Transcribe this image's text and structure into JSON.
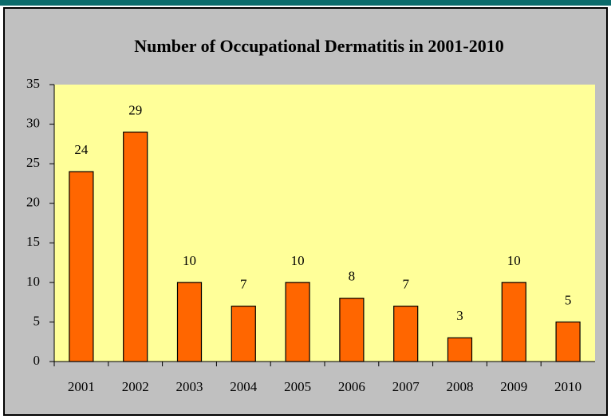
{
  "chart_data": {
    "type": "bar",
    "title": "Number of Occupational Dermatitis in 2001-2010",
    "categories": [
      "2001",
      "2002",
      "2003",
      "2004",
      "2005",
      "2006",
      "2007",
      "2008",
      "2009",
      "2010"
    ],
    "values": [
      24,
      29,
      10,
      7,
      10,
      8,
      7,
      3,
      10,
      5
    ],
    "color": "#ff6600",
    "ylim": [
      0,
      35
    ],
    "yticks": [
      0,
      5,
      10,
      15,
      20,
      25,
      30,
      35
    ],
    "grid": false
  }
}
